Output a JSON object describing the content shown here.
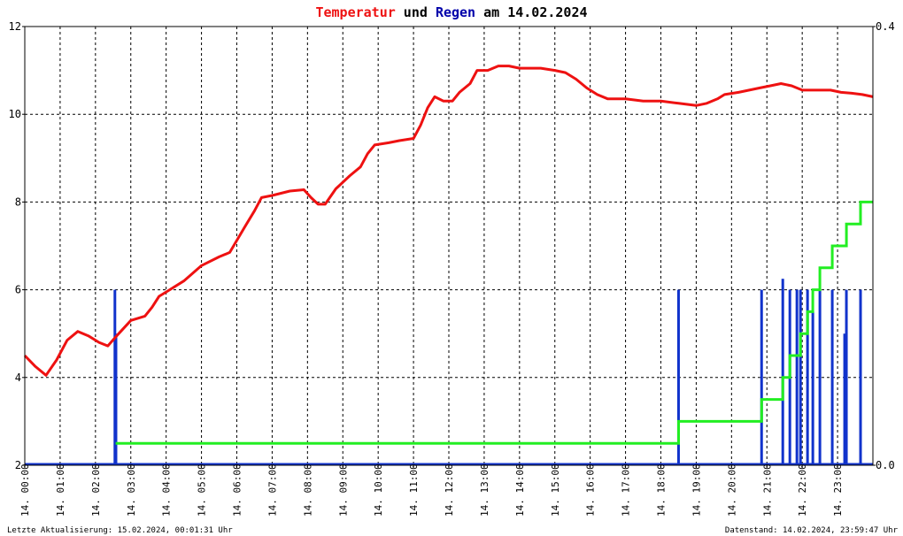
{
  "title": {
    "part1": "Temperatur",
    "part2": " und ",
    "part3": "Regen",
    "part4": " am 14.02.2024"
  },
  "colors": {
    "temperature": "#ee1111",
    "rain_bars": "#1133cc",
    "rain_sum": "#22ee22",
    "title_blue": "#0000aa",
    "grid": "#000000"
  },
  "footer": {
    "left": "Letzte Aktualisierung: 15.02.2024, 00:01:31 Uhr",
    "right": "Datenstand: 14.02.2024, 23:59:47 Uhr"
  },
  "chart_data": {
    "type": "line",
    "title": "Temperatur und Regen am 14.02.2024",
    "x_tick_labels": [
      "14. 00:00",
      "14. 01:00",
      "14. 02:00",
      "14. 03:00",
      "14. 04:00",
      "14. 05:00",
      "14. 06:00",
      "14. 07:00",
      "14. 08:00",
      "14. 09:00",
      "14. 10:00",
      "14. 11:00",
      "14. 12:00",
      "14. 13:00",
      "14. 14:00",
      "14. 15:00",
      "14. 16:00",
      "14. 17:00",
      "14. 18:00",
      "14. 19:00",
      "14. 20:00",
      "14. 21:00",
      "14. 22:00",
      "14. 23:00"
    ],
    "x_range_hours": [
      0,
      24
    ],
    "y_left": {
      "ylim": [
        2,
        12
      ],
      "ticks": [
        "2",
        "4",
        "6",
        "8",
        "10",
        "12"
      ]
    },
    "y_right": {
      "ylim": [
        0,
        0.4
      ],
      "ticks": [
        "0.0",
        "0.4"
      ]
    },
    "grid": true,
    "series": [
      {
        "name": "Temperatur",
        "axis": "left",
        "points": [
          [
            0.0,
            4.5
          ],
          [
            0.3,
            4.25
          ],
          [
            0.6,
            4.05
          ],
          [
            0.9,
            4.4
          ],
          [
            1.2,
            4.85
          ],
          [
            1.5,
            5.05
          ],
          [
            1.8,
            4.95
          ],
          [
            2.1,
            4.8
          ],
          [
            2.35,
            4.72
          ],
          [
            2.6,
            4.95
          ],
          [
            3.0,
            5.3
          ],
          [
            3.4,
            5.4
          ],
          [
            3.6,
            5.6
          ],
          [
            3.8,
            5.85
          ],
          [
            4.0,
            5.95
          ],
          [
            4.5,
            6.2
          ],
          [
            5.0,
            6.55
          ],
          [
            5.5,
            6.75
          ],
          [
            5.8,
            6.85
          ],
          [
            6.2,
            7.4
          ],
          [
            6.5,
            7.8
          ],
          [
            6.7,
            8.1
          ],
          [
            7.0,
            8.15
          ],
          [
            7.5,
            8.25
          ],
          [
            7.9,
            8.28
          ],
          [
            8.1,
            8.1
          ],
          [
            8.3,
            7.95
          ],
          [
            8.5,
            7.95
          ],
          [
            8.8,
            8.3
          ],
          [
            9.2,
            8.6
          ],
          [
            9.5,
            8.8
          ],
          [
            9.7,
            9.1
          ],
          [
            9.9,
            9.3
          ],
          [
            10.3,
            9.35
          ],
          [
            10.6,
            9.4
          ],
          [
            11.0,
            9.45
          ],
          [
            11.2,
            9.75
          ],
          [
            11.4,
            10.15
          ],
          [
            11.6,
            10.4
          ],
          [
            11.85,
            10.3
          ],
          [
            12.1,
            10.3
          ],
          [
            12.3,
            10.5
          ],
          [
            12.6,
            10.7
          ],
          [
            12.8,
            11.0
          ],
          [
            13.1,
            11.0
          ],
          [
            13.4,
            11.1
          ],
          [
            13.7,
            11.1
          ],
          [
            14.0,
            11.05
          ],
          [
            14.3,
            11.05
          ],
          [
            14.6,
            11.05
          ],
          [
            15.0,
            11.0
          ],
          [
            15.3,
            10.95
          ],
          [
            15.6,
            10.8
          ],
          [
            15.9,
            10.6
          ],
          [
            16.2,
            10.45
          ],
          [
            16.5,
            10.35
          ],
          [
            17.0,
            10.35
          ],
          [
            17.5,
            10.3
          ],
          [
            18.0,
            10.3
          ],
          [
            18.5,
            10.25
          ],
          [
            19.0,
            10.2
          ],
          [
            19.3,
            10.25
          ],
          [
            19.6,
            10.35
          ],
          [
            19.8,
            10.45
          ],
          [
            20.2,
            10.5
          ],
          [
            20.5,
            10.55
          ],
          [
            20.8,
            10.6
          ],
          [
            21.1,
            10.65
          ],
          [
            21.4,
            10.7
          ],
          [
            21.7,
            10.65
          ],
          [
            22.0,
            10.55
          ],
          [
            22.4,
            10.55
          ],
          [
            22.8,
            10.55
          ],
          [
            23.1,
            10.5
          ],
          [
            23.4,
            10.48
          ],
          [
            23.7,
            10.45
          ],
          [
            24.0,
            10.4
          ]
        ]
      },
      {
        "name": "Regen",
        "axis": "right",
        "style": "bars",
        "bars": [
          [
            2.55,
            0.16
          ],
          [
            2.58,
            0.12
          ],
          [
            18.5,
            0.16
          ],
          [
            20.85,
            0.16
          ],
          [
            21.45,
            0.17
          ],
          [
            21.65,
            0.16
          ],
          [
            21.85,
            0.16
          ],
          [
            21.95,
            0.16
          ],
          [
            22.15,
            0.16
          ],
          [
            22.3,
            0.14
          ],
          [
            22.5,
            0.16
          ],
          [
            22.85,
            0.16
          ],
          [
            23.2,
            0.12
          ],
          [
            23.25,
            0.16
          ],
          [
            23.65,
            0.16
          ]
        ]
      },
      {
        "name": "Regen Summe",
        "axis": "right",
        "style": "step",
        "points": [
          [
            2.57,
            0.02
          ],
          [
            18.5,
            0.02
          ],
          [
            18.5,
            0.04
          ],
          [
            20.85,
            0.04
          ],
          [
            20.85,
            0.06
          ],
          [
            21.45,
            0.06
          ],
          [
            21.45,
            0.08
          ],
          [
            21.65,
            0.08
          ],
          [
            21.65,
            0.1
          ],
          [
            21.95,
            0.1
          ],
          [
            21.95,
            0.12
          ],
          [
            22.15,
            0.12
          ],
          [
            22.15,
            0.14
          ],
          [
            22.3,
            0.14
          ],
          [
            22.3,
            0.16
          ],
          [
            22.5,
            0.16
          ],
          [
            22.5,
            0.18
          ],
          [
            22.85,
            0.18
          ],
          [
            22.85,
            0.2
          ],
          [
            23.25,
            0.2
          ],
          [
            23.25,
            0.22
          ],
          [
            23.65,
            0.22
          ],
          [
            23.65,
            0.24
          ],
          [
            24.0,
            0.24
          ]
        ]
      }
    ]
  }
}
